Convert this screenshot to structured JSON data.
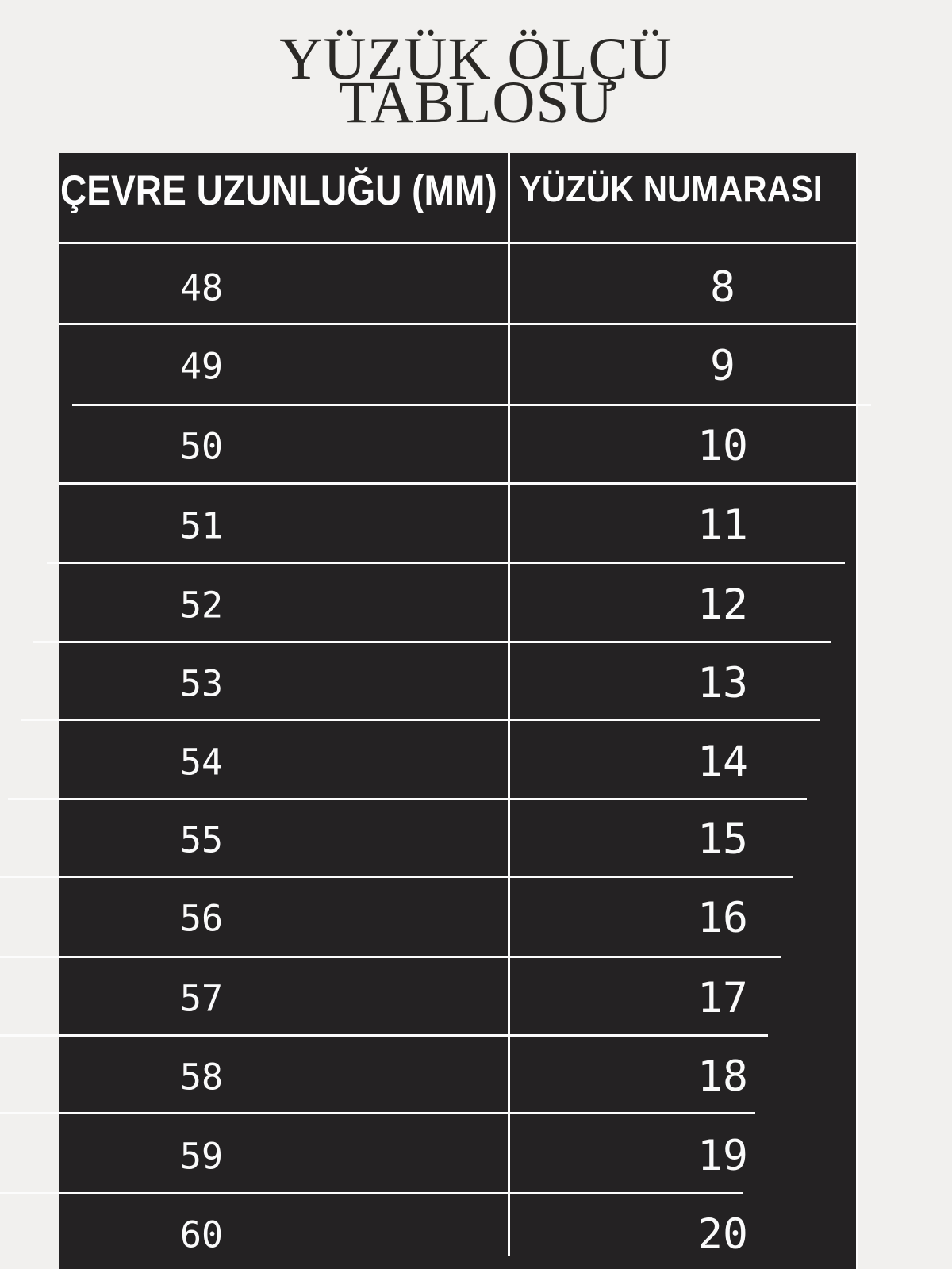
{
  "title": {
    "line1": "YÜZÜK ÖLÇÜ",
    "line2": "TABLOSU"
  },
  "table": {
    "header_left": "ÇEVRE UZUNLUĞU (MM)",
    "header_right": "YÜZÜK NUMARASI"
  },
  "chart_data": {
    "type": "table",
    "title": "YÜZÜK ÖLÇÜ TABLOSU",
    "columns": [
      "ÇEVRE UZUNLUĞU (MM)",
      "YÜZÜK NUMARASI"
    ],
    "rows": [
      [
        48,
        8
      ],
      [
        49,
        9
      ],
      [
        50,
        10
      ],
      [
        51,
        11
      ],
      [
        52,
        12
      ],
      [
        53,
        13
      ],
      [
        54,
        14
      ],
      [
        55,
        15
      ],
      [
        56,
        16
      ],
      [
        57,
        17
      ],
      [
        58,
        18
      ],
      [
        59,
        19
      ],
      [
        60,
        20
      ]
    ]
  },
  "colors": {
    "background": "#f1f0ee",
    "table_background": "#242223",
    "grid_line": "#fcfcfc",
    "header_text": "#fdfdfd",
    "cell_text": "#fafafa",
    "title_text": "#2b2926"
  }
}
